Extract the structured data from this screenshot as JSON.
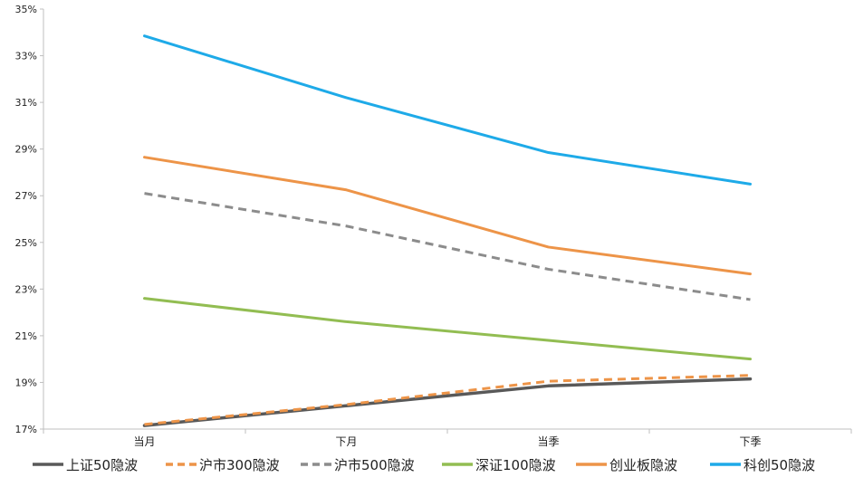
{
  "chart_data": {
    "type": "line",
    "title": "",
    "xlabel": "",
    "ylabel": "",
    "categories": [
      "当月",
      "下月",
      "当季",
      "下季"
    ],
    "ylim": [
      17,
      35
    ],
    "yticks": [
      17,
      19,
      21,
      23,
      25,
      27,
      29,
      31,
      33,
      35
    ],
    "ytick_labels": [
      "17%",
      "19%",
      "21%",
      "23%",
      "25%",
      "27%",
      "29%",
      "31%",
      "33%",
      "35%"
    ],
    "grid": false,
    "legend_position": "bottom",
    "series": [
      {
        "name": "上证50隐波",
        "color": "#595959",
        "style": "solid",
        "values": [
          17.15,
          18.0,
          18.85,
          19.15
        ]
      },
      {
        "name": "沪市300隐波",
        "color": "#ED9448",
        "style": "dashed",
        "values": [
          17.2,
          18.05,
          19.05,
          19.3
        ]
      },
      {
        "name": "沪市500隐波",
        "color": "#8C8C8C",
        "style": "dashed",
        "values": [
          27.1,
          25.7,
          23.85,
          22.55
        ]
      },
      {
        "name": "深证100隐波",
        "color": "#92BD52",
        "style": "solid",
        "values": [
          22.6,
          21.6,
          20.8,
          20.0
        ]
      },
      {
        "name": "创业板隐波",
        "color": "#ED9448",
        "style": "solid",
        "values": [
          28.65,
          27.25,
          24.8,
          23.65
        ]
      },
      {
        "name": "科创50隐波",
        "color": "#1EAAE8",
        "style": "solid",
        "values": [
          33.85,
          31.2,
          28.85,
          27.5
        ]
      }
    ]
  }
}
